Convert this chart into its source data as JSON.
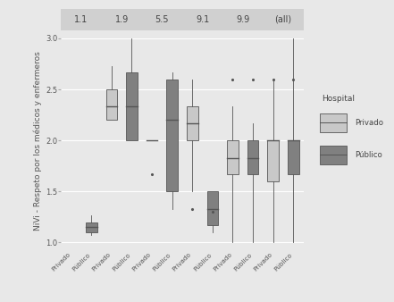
{
  "facets": [
    "1.1",
    "1.9",
    "5.5",
    "9.1",
    "9.9",
    "(all)"
  ],
  "hospitals": [
    "Privado",
    "Público"
  ],
  "colors": {
    "Privado": "#c8c8c8",
    "Público": "#808080"
  },
  "ylabel": "NiVi - Respeto por los médicos y enfermeros",
  "ylim": [
    0.92,
    3.08
  ],
  "yticks": [
    1.0,
    1.5,
    2.0,
    2.5,
    3.0
  ],
  "ytick_labels": [
    "1.0",
    "1.5",
    "2.0",
    "2.5",
    "3.0"
  ],
  "background_color": "#e8e8e8",
  "panel_color": "#e8e8e8",
  "strip_color": "#d0d0d0",
  "grid_color": "#ffffff",
  "box_data": {
    "1.1": {
      "Privado": {
        "q1": null,
        "median": null,
        "q3": null,
        "whislo": null,
        "whishi": null,
        "fliers": []
      },
      "Público": {
        "q1": 1.1,
        "median": 1.15,
        "q3": 1.2,
        "whislo": 1.07,
        "whishi": 1.27,
        "fliers": []
      }
    },
    "1.9": {
      "Privado": {
        "q1": 2.2,
        "median": 2.33,
        "q3": 2.5,
        "whislo": 2.2,
        "whishi": 2.73,
        "fliers": []
      },
      "Público": {
        "q1": 2.0,
        "median": 2.33,
        "q3": 2.67,
        "whislo": 2.0,
        "whishi": 3.0,
        "fliers": []
      }
    },
    "5.5": {
      "Privado": {
        "q1": null,
        "median": 2.0,
        "q3": null,
        "whislo": 2.0,
        "whishi": 2.0,
        "fliers": [
          1.67
        ]
      },
      "Público": {
        "q1": 1.5,
        "median": 2.2,
        "q3": 2.6,
        "whislo": 1.33,
        "whishi": 2.67,
        "fliers": []
      }
    },
    "9.1": {
      "Privado": {
        "q1": 2.0,
        "median": 2.17,
        "q3": 2.33,
        "whislo": 1.5,
        "whishi": 2.6,
        "fliers": [
          1.33
        ]
      },
      "Público": {
        "q1": 1.17,
        "median": 1.33,
        "q3": 1.5,
        "whislo": 1.1,
        "whishi": 1.5,
        "fliers": [
          1.3
        ]
      }
    },
    "9.9": {
      "Privado": {
        "q1": 1.67,
        "median": 1.83,
        "q3": 2.0,
        "whislo": 1.0,
        "whishi": 2.33,
        "fliers": [
          2.6
        ]
      },
      "Público": {
        "q1": 1.67,
        "median": 1.83,
        "q3": 2.0,
        "whislo": 1.0,
        "whishi": 2.17,
        "fliers": [
          2.6
        ]
      }
    },
    "(all)": {
      "Privado": {
        "q1": 1.6,
        "median": 2.0,
        "q3": 2.0,
        "whislo": 1.0,
        "whishi": 2.6,
        "fliers": [
          2.6
        ]
      },
      "Público": {
        "q1": 1.67,
        "median": 2.0,
        "q3": 2.0,
        "whislo": 1.0,
        "whishi": 3.0,
        "fliers": [
          2.6
        ]
      }
    }
  }
}
